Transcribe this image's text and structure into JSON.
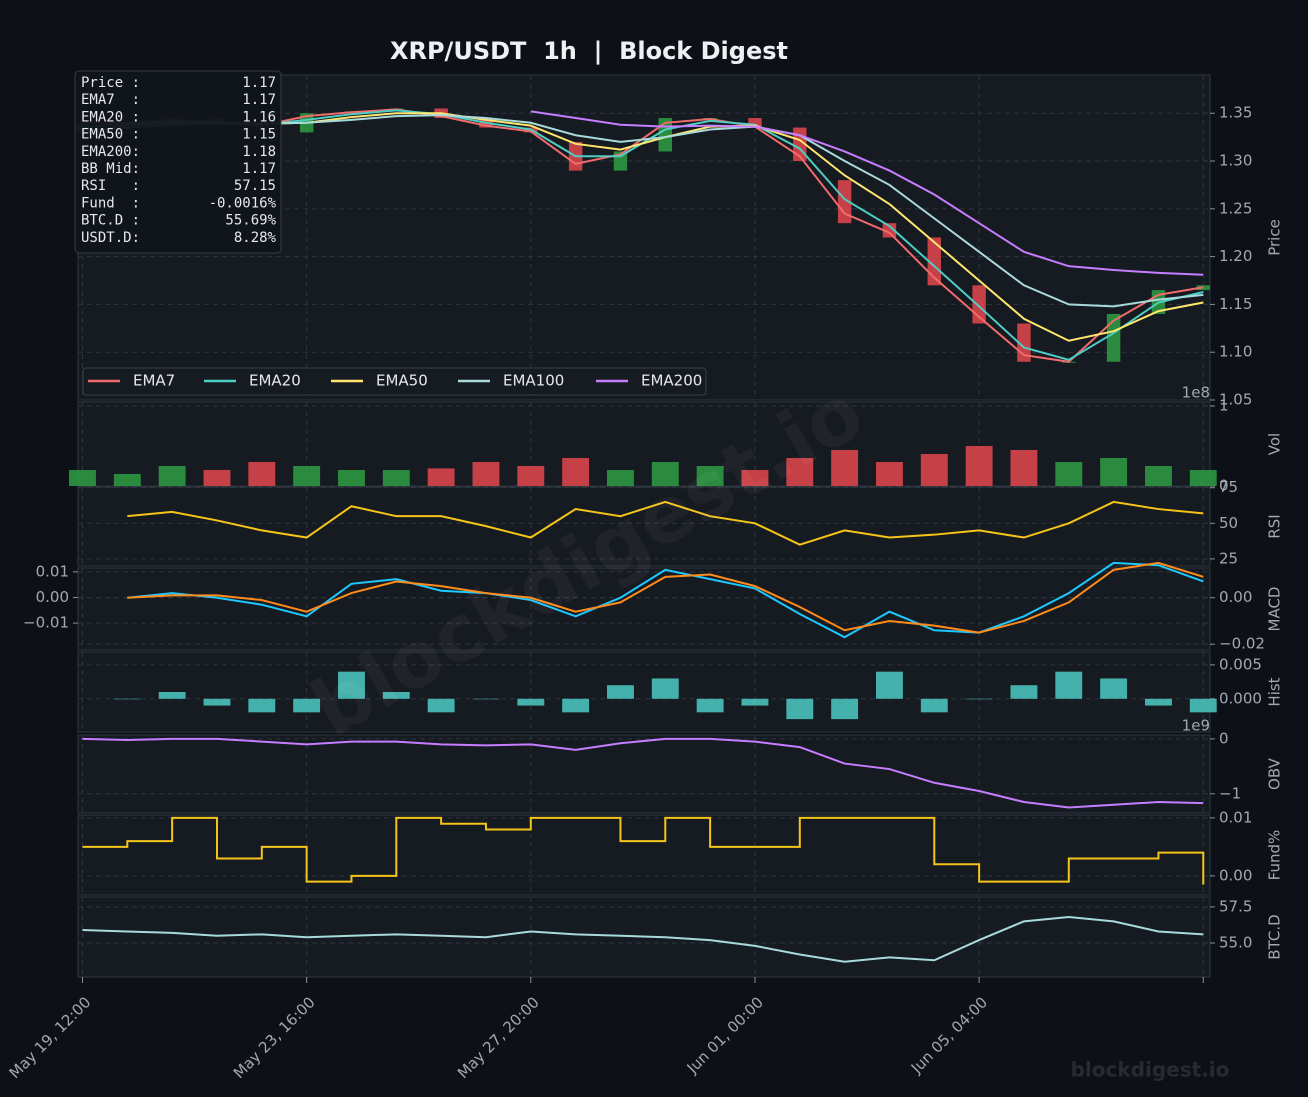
{
  "info_box": [
    [
      "Price :",
      "1.17"
    ],
    [
      "EMA7  :",
      "1.17"
    ],
    [
      "EMA20 :",
      "1.16"
    ],
    [
      "EMA50 :",
      "1.15"
    ],
    [
      "EMA200:",
      "1.18"
    ],
    [
      "BB Mid:",
      "1.17"
    ],
    [
      "RSI   :",
      "57.15"
    ],
    [
      "Fund  :",
      "-0.0016%"
    ],
    [
      "BTC.D :",
      "55.69%"
    ],
    [
      "USDT.D:",
      "8.28%"
    ]
  ],
  "watermark": "blockdigest.io",
  "footer": "blockdigest.io",
  "chart_data": [
    {
      "type": "candlestick",
      "title": "XRP/USDT  1h  |  Block Digest",
      "ylabel": "Price",
      "ylim": [
        1.05,
        1.39
      ],
      "yticks": [
        1.05,
        {
          "value": 1.1,
          "label": "1.10"
        },
        1.15,
        {
          "value": 1.2,
          "label": "1.20"
        },
        1.25,
        {
          "value": 1.3,
          "label": "1.30"
        },
        1.35
      ],
      "grid": true,
      "legend": "lower left",
      "up_color": "#2ea043",
      "down_color": "#e5484d",
      "open": [
        1.33,
        1.34,
        1.34,
        1.345,
        1.34,
        1.33,
        1.35,
        1.352,
        1.355,
        1.345,
        1.335,
        1.32,
        1.29,
        1.31,
        1.345,
        1.345,
        1.335,
        1.28,
        1.235,
        1.22,
        1.17,
        1.13,
        1.09,
        1.09,
        1.14,
        1.165
      ],
      "close": [
        1.34,
        1.34,
        1.345,
        1.34,
        1.335,
        1.35,
        1.352,
        1.355,
        1.345,
        1.335,
        1.33,
        1.29,
        1.31,
        1.345,
        1.345,
        1.335,
        1.3,
        1.235,
        1.22,
        1.17,
        1.13,
        1.09,
        1.09,
        1.14,
        1.165,
        1.17
      ],
      "series": [
        {
          "name": "EMA7",
          "color": "#f06b6b",
          "values": [
            1.34,
            1.34,
            1.343,
            1.341,
            1.337,
            1.347,
            1.351,
            1.354,
            1.347,
            1.337,
            1.331,
            1.297,
            1.307,
            1.34,
            1.344,
            1.336,
            1.305,
            1.245,
            1.225,
            1.178,
            1.137,
            1.097,
            1.09,
            1.133,
            1.16,
            1.168
          ]
        },
        {
          "name": "EMA20",
          "color": "#4ecdc4",
          "values": [
            1.335,
            1.34,
            1.342,
            1.341,
            1.338,
            1.343,
            1.349,
            1.353,
            1.349,
            1.34,
            1.333,
            1.305,
            1.305,
            1.333,
            1.342,
            1.338,
            1.313,
            1.26,
            1.232,
            1.19,
            1.148,
            1.105,
            1.092,
            1.12,
            1.152,
            1.163
          ]
        },
        {
          "name": "EMA50",
          "color": "#ffe66d",
          "values": [
            1.33,
            1.338,
            1.34,
            1.34,
            1.339,
            1.34,
            1.346,
            1.35,
            1.35,
            1.343,
            1.337,
            1.318,
            1.312,
            1.325,
            1.336,
            1.337,
            1.322,
            1.285,
            1.255,
            1.215,
            1.175,
            1.135,
            1.112,
            1.122,
            1.143,
            1.152
          ]
        },
        {
          "name": "EMA100",
          "color": "#a8dadc",
          "values": [
            1.33,
            1.335,
            1.338,
            1.339,
            1.339,
            1.34,
            1.343,
            1.347,
            1.348,
            1.345,
            1.34,
            1.327,
            1.32,
            1.325,
            1.333,
            1.336,
            1.327,
            1.3,
            1.275,
            1.24,
            1.205,
            1.17,
            1.15,
            1.148,
            1.155,
            1.16
          ]
        },
        {
          "name": "EMA200",
          "color": "#c77dff",
          "values": [
            null,
            null,
            null,
            null,
            null,
            null,
            null,
            null,
            null,
            null,
            1.352,
            1.345,
            1.338,
            1.336,
            1.337,
            1.336,
            1.327,
            1.31,
            1.29,
            1.265,
            1.235,
            1.205,
            1.19,
            1.186,
            1.183,
            1.181
          ]
        }
      ]
    },
    {
      "type": "bar",
      "ylabel": "Vol",
      "offset_label": "1e8",
      "ylim": [
        0,
        1.05
      ],
      "yticks": [
        0,
        1
      ],
      "grid": true,
      "values": [
        0.2,
        0.15,
        0.25,
        0.2,
        0.3,
        0.25,
        0.2,
        0.2,
        0.22,
        0.3,
        0.25,
        0.35,
        0.2,
        0.3,
        0.25,
        0.2,
        0.35,
        0.45,
        0.3,
        0.4,
        0.5,
        0.45,
        0.3,
        0.35,
        0.25,
        0.2
      ],
      "colors": [
        "#2ea043",
        "#2ea043",
        "#2ea043",
        "#e5484d",
        "#e5484d",
        "#2ea043",
        "#2ea043",
        "#2ea043",
        "#e5484d",
        "#e5484d",
        "#e5484d",
        "#e5484d",
        "#2ea043",
        "#2ea043",
        "#2ea043",
        "#e5484d",
        "#e5484d",
        "#e5484d",
        "#e5484d",
        "#e5484d",
        "#e5484d",
        "#e5484d",
        "#2ea043",
        "#2ea043",
        "#2ea043",
        "#2ea043"
      ]
    },
    {
      "type": "line",
      "ylabel": "RSI",
      "ylim": [
        20,
        75.5
      ],
      "yticks": [
        25,
        50,
        75
      ],
      "grid": true,
      "series": [
        {
          "color": "#f5c518",
          "values": [
            null,
            55,
            58,
            52,
            45,
            40,
            62,
            55,
            55,
            48,
            40,
            60,
            55,
            65,
            55,
            50,
            35,
            45,
            40,
            42,
            45,
            40,
            50,
            65,
            60,
            57
          ]
        }
      ]
    },
    {
      "type": "line",
      "ylabel": "MACD",
      "yaxis_side": "left",
      "grid": true,
      "ylim": [
        -0.0205,
        0.0115
      ],
      "yticks": [
        0.01,
        {
          "value": 0,
          "label": "0.00"
        },
        {
          "value": -0.01,
          "label": "−0.01"
        }
      ],
      "y2lim": [
        -0.0225,
        0.0128
      ],
      "y2ticks": [
        {
          "value": 0,
          "label": "0.00"
        },
        {
          "value": -0.02,
          "label": "−0.02"
        }
      ],
      "series": [
        {
          "color": "#1ec8ff",
          "axis": "y2",
          "values": [
            null,
            0.0,
            0.002,
            0.0,
            -0.003,
            -0.008,
            0.006,
            0.008,
            0.003,
            0.002,
            -0.001,
            -0.008,
            0.0,
            0.012,
            0.008,
            0.004,
            -0.007,
            -0.017,
            -0.006,
            -0.014,
            -0.015,
            -0.008,
            0.002,
            0.015,
            0.014,
            0.007
          ]
        },
        {
          "color": "#ff8c1a",
          "axis": "y2",
          "values": [
            null,
            0.0,
            0.001,
            0.001,
            -0.001,
            -0.006,
            0.002,
            0.007,
            0.005,
            0.002,
            0.0,
            -0.006,
            -0.002,
            0.009,
            0.01,
            0.005,
            -0.004,
            -0.014,
            -0.01,
            -0.012,
            -0.015,
            -0.01,
            -0.002,
            0.012,
            0.015,
            0.009
          ]
        }
      ]
    },
    {
      "type": "bar",
      "ylabel": "Hist",
      "ylim": [
        -0.0049,
        0.0069
      ],
      "yticks": [
        {
          "value": 0.005,
          "label": "0.005"
        },
        {
          "value": 0,
          "label": "0.000"
        }
      ],
      "grid": true,
      "color": "#4ecdc4",
      "values": [
        null,
        0,
        0.001,
        -0.001,
        -0.002,
        -0.002,
        0.004,
        0.001,
        -0.002,
        0,
        -0.001,
        -0.002,
        0.002,
        0.003,
        -0.002,
        -0.001,
        -0.003,
        -0.003,
        0.004,
        -0.002,
        0,
        0.002,
        0.004,
        0.003,
        -0.001,
        -0.002
      ]
    },
    {
      "type": "line",
      "ylabel": "OBV",
      "offset_label": "1e9",
      "ylim": [
        -1.35,
        0.07
      ],
      "yticks": [
        0,
        {
          "value": -1,
          "label": "−1"
        }
      ],
      "grid": true,
      "series": [
        {
          "color": "#c77dff",
          "values": [
            0,
            -0.02,
            0,
            0,
            -0.05,
            -0.1,
            -0.05,
            -0.05,
            -0.1,
            -0.12,
            -0.1,
            -0.2,
            -0.08,
            0,
            0,
            -0.05,
            -0.15,
            -0.45,
            -0.55,
            -0.8,
            -0.95,
            -1.15,
            -1.25,
            -1.2,
            -1.15,
            -1.17
          ]
        }
      ]
    },
    {
      "type": "line",
      "ylabel": "Fund%",
      "ylim": [
        -0.0033,
        0.0105
      ],
      "yticks": [
        0.01,
        {
          "value": 0,
          "label": "0.00"
        }
      ],
      "grid": true,
      "step": true,
      "series": [
        {
          "color": "#f5c518",
          "values": [
            0.005,
            0.006,
            0.01,
            0.003,
            0.005,
            -0.001,
            0.0,
            0.01,
            0.009,
            0.008,
            0.01,
            0.01,
            0.006,
            0.01,
            0.005,
            0.005,
            0.01,
            0.01,
            0.01,
            0.002,
            -0.001,
            -0.001,
            0.003,
            0.003,
            0.004,
            -0.0015
          ]
        }
      ]
    },
    {
      "type": "line",
      "ylabel": "BTC.D",
      "ylim": [
        52.64,
        58.19
      ],
      "yticks": [
        57.5,
        {
          "value": 55,
          "label": "55.0"
        }
      ],
      "grid": true,
      "x": [
        0,
        20,
        40,
        60,
        80,
        100,
        120,
        140,
        160,
        180,
        200,
        220,
        240,
        260,
        280,
        300,
        320,
        340,
        360,
        380,
        400,
        420,
        440,
        460,
        480,
        500
      ],
      "xlim": [
        -2,
        503
      ],
      "xticks": [
        {
          "value": 0,
          "label": "May 19, 12:00"
        },
        {
          "value": 100,
          "label": "May 23, 16:00"
        },
        {
          "value": 200,
          "label": "May 27, 20:00"
        },
        {
          "value": 300,
          "label": "Jun 01, 00:00"
        },
        {
          "value": 400,
          "label": "Jun 05, 04:00"
        },
        {
          "value": 500,
          "label": ""
        }
      ],
      "series": [
        {
          "color": "#a8dadc",
          "values": [
            55.9,
            55.8,
            55.7,
            55.5,
            55.6,
            55.4,
            55.5,
            55.6,
            55.5,
            55.4,
            55.8,
            55.6,
            55.5,
            55.4,
            55.2,
            54.8,
            54.2,
            53.7,
            54.0,
            53.8,
            55.2,
            56.5,
            56.8,
            56.5,
            55.8,
            55.6
          ]
        }
      ]
    }
  ]
}
